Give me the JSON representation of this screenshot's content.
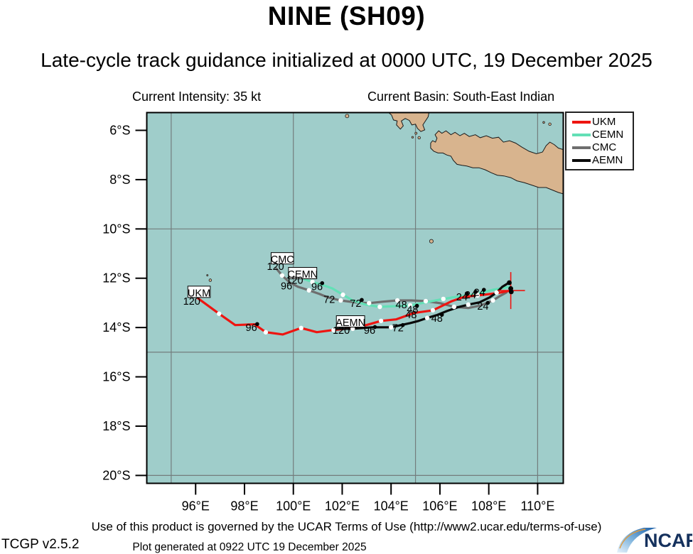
{
  "title": "NINE (SH09)",
  "subtitle": "Late-cycle track guidance initialized at 0000 UTC, 19 December 2025",
  "info": {
    "intensity": "Current Intensity: 35 kt",
    "basin": "Current Basin: South-East Indian"
  },
  "legend": [
    {
      "label": "UKM",
      "color": "#ee1511"
    },
    {
      "label": "CEMN",
      "color": "#63e0b6"
    },
    {
      "label": "CMC",
      "color": "#6e6e6e"
    },
    {
      "label": "AEMN",
      "color": "#0a0a0a"
    }
  ],
  "footer": {
    "terms": "Use of this product is governed by the UCAR Terms of Use (http://www2.ucar.edu/terms-of-use)",
    "generated": "Plot generated at 0922 UTC   19 December 2025",
    "version": "TCGP v2.5.2",
    "logo_text": "NCAR"
  },
  "chart_data": {
    "type": "line",
    "title": "NINE (SH09) late-cycle track guidance map",
    "lon_range": [
      94.0,
      111.05
    ],
    "lat_range": [
      5.28,
      20.32
    ],
    "x_ticks": [
      {
        "lon": 96,
        "label": "96°E"
      },
      {
        "lon": 98,
        "label": "98°E"
      },
      {
        "lon": 100,
        "label": "100°E"
      },
      {
        "lon": 102,
        "label": "102°E"
      },
      {
        "lon": 104,
        "label": "104°E"
      },
      {
        "lon": 106,
        "label": "106°E"
      },
      {
        "lon": 108,
        "label": "108°E"
      },
      {
        "lon": 110,
        "label": "110°E"
      }
    ],
    "y_ticks": [
      {
        "lat": 6,
        "label": "6°S"
      },
      {
        "lat": 8,
        "label": "8°S"
      },
      {
        "lat": 10,
        "label": "10°S"
      },
      {
        "lat": 12,
        "label": "12°S"
      },
      {
        "lat": 14,
        "label": "14°S"
      },
      {
        "lat": 16,
        "label": "16°S"
      },
      {
        "lat": 18,
        "label": "18°S"
      },
      {
        "lat": 20,
        "label": "20°S"
      }
    ],
    "grid": {
      "lons": [
        95,
        100,
        105,
        110
      ],
      "lats": [
        10,
        15,
        20
      ]
    },
    "colors": {
      "sea": "#9fcdca",
      "land": "#d8b48e",
      "coast": "#1a1a1a",
      "grid": "#737d7d",
      "frame": "#000000",
      "cross": "#ee1511"
    },
    "current_position": {
      "lon": 108.9,
      "lat": 12.5
    },
    "series": [
      {
        "name": "CMC",
        "color": "#6e6e6e",
        "points": [
          [
            99.3,
            11.6
          ],
          [
            99.54,
            11.89
          ],
          [
            99.86,
            12.18
          ],
          [
            100.2,
            12.35
          ],
          [
            100.64,
            12.49
          ],
          [
            101.07,
            12.64
          ],
          [
            101.42,
            12.78
          ],
          [
            101.94,
            12.9
          ],
          [
            102.52,
            12.98
          ],
          [
            103.1,
            13.01
          ],
          [
            103.68,
            12.95
          ],
          [
            104.26,
            12.9
          ],
          [
            104.84,
            12.9
          ],
          [
            105.42,
            12.93
          ],
          [
            106.0,
            13.01
          ],
          [
            106.58,
            13.16
          ],
          [
            107.16,
            13.21
          ],
          [
            107.68,
            13.1
          ],
          [
            108.17,
            12.9
          ],
          [
            108.46,
            12.72
          ],
          [
            108.72,
            12.58
          ]
        ],
        "white_dots": [
          [
            99.54,
            11.89
          ],
          [
            100.64,
            12.49
          ],
          [
            101.94,
            12.9
          ],
          [
            103.1,
            13.01
          ],
          [
            104.26,
            12.9
          ],
          [
            105.42,
            12.93
          ],
          [
            106.58,
            13.16
          ],
          [
            108.17,
            12.9
          ]
        ]
      },
      {
        "name": "CEMN",
        "color": "#63e0b6",
        "points": [
          [
            100.43,
            12.03
          ],
          [
            100.78,
            12.15
          ],
          [
            101.16,
            12.26
          ],
          [
            101.59,
            12.41
          ],
          [
            102.03,
            12.67
          ],
          [
            102.43,
            12.9
          ],
          [
            102.96,
            13.07
          ],
          [
            103.54,
            13.16
          ],
          [
            104.2,
            13.13
          ],
          [
            104.78,
            13.1
          ],
          [
            105.42,
            12.98
          ],
          [
            106.14,
            12.84
          ],
          [
            106.87,
            12.72
          ],
          [
            107.51,
            12.64
          ],
          [
            108.17,
            12.47
          ],
          [
            108.84,
            12.35
          ]
        ],
        "white_dots": [
          [
            100.78,
            12.15
          ],
          [
            102.03,
            12.67
          ],
          [
            103.54,
            13.16
          ],
          [
            104.78,
            13.1
          ],
          [
            106.14,
            12.84
          ],
          [
            107.51,
            12.64
          ]
        ]
      },
      {
        "name": "UKM",
        "color": "#ee1511",
        "points": [
          [
            96.09,
            12.81
          ],
          [
            96.96,
            13.44
          ],
          [
            97.62,
            13.9
          ],
          [
            98.41,
            13.87
          ],
          [
            98.87,
            14.19
          ],
          [
            99.57,
            14.28
          ],
          [
            100.32,
            14.02
          ],
          [
            100.96,
            14.19
          ],
          [
            101.65,
            14.1
          ],
          [
            102.67,
            13.99
          ],
          [
            103.59,
            13.73
          ],
          [
            104.2,
            13.67
          ],
          [
            104.93,
            13.41
          ],
          [
            105.71,
            13.3
          ],
          [
            106.49,
            12.93
          ],
          [
            107.01,
            12.75
          ],
          [
            107.54,
            12.7
          ],
          [
            108.32,
            12.61
          ],
          [
            108.9,
            12.5
          ]
        ],
        "white_dots": [
          [
            96.96,
            13.44
          ],
          [
            98.87,
            14.19
          ],
          [
            100.32,
            14.02
          ],
          [
            101.65,
            14.1
          ],
          [
            103.59,
            13.73
          ],
          [
            105.71,
            13.3
          ],
          [
            107.54,
            12.7
          ]
        ]
      },
      {
        "name": "AEMN",
        "color": "#0a0a0a",
        "points": [
          [
            101.65,
            14.05
          ],
          [
            102.09,
            14.05
          ],
          [
            102.43,
            14.05
          ],
          [
            102.84,
            14.02
          ],
          [
            103.25,
            13.99
          ],
          [
            103.62,
            13.99
          ],
          [
            104.0,
            13.99
          ],
          [
            104.41,
            13.9
          ],
          [
            104.78,
            13.82
          ],
          [
            105.13,
            13.73
          ],
          [
            105.48,
            13.61
          ],
          [
            105.86,
            13.5
          ],
          [
            106.29,
            13.33
          ],
          [
            106.72,
            13.18
          ],
          [
            107.16,
            13.07
          ],
          [
            107.62,
            12.98
          ],
          [
            108.03,
            12.78
          ],
          [
            108.32,
            12.58
          ],
          [
            108.55,
            12.35
          ],
          [
            108.78,
            12.21
          ]
        ],
        "white_dots": [
          [
            102.43,
            14.05
          ],
          [
            104.0,
            13.99
          ],
          [
            105.48,
            13.61
          ],
          [
            107.16,
            13.07
          ],
          [
            108.32,
            12.58
          ]
        ]
      }
    ],
    "black_dots": [
      [
        108.84,
        12.18
      ],
      [
        108.9,
        12.42
      ],
      [
        108.92,
        12.55
      ]
    ],
    "labels": [
      {
        "text": "CMC",
        "lon": 99.55,
        "lat": 11.22,
        "boxed": true
      },
      {
        "text": "120",
        "lon": 99.27,
        "lat": 11.5
      },
      {
        "text": "CEMN",
        "lon": 100.38,
        "lat": 11.82,
        "boxed": true
      },
      {
        "text": "120",
        "lon": 100.05,
        "lat": 12.06
      },
      {
        "text": "96",
        "lon": 99.72,
        "lat": 12.3
      },
      {
        "text": "96",
        "lon": 100.97,
        "lat": 12.32,
        "dot": [
          101.18,
          12.2
        ]
      },
      {
        "text": "72",
        "lon": 101.47,
        "lat": 12.85
      },
      {
        "text": "72",
        "lon": 102.55,
        "lat": 13.0,
        "dot": [
          102.8,
          12.88
        ]
      },
      {
        "text": "UKM",
        "lon": 96.14,
        "lat": 12.58,
        "boxed": true
      },
      {
        "text": "120",
        "lon": 95.84,
        "lat": 12.92
      },
      {
        "text": "96",
        "lon": 98.28,
        "lat": 13.98,
        "dot": [
          98.52,
          13.86
        ]
      },
      {
        "text": "AEMN",
        "lon": 102.34,
        "lat": 13.78,
        "boxed": true
      },
      {
        "text": "120",
        "lon": 101.96,
        "lat": 14.1
      },
      {
        "text": "96",
        "lon": 103.12,
        "lat": 14.1,
        "dot": [
          103.34,
          13.98
        ]
      },
      {
        "text": "72",
        "lon": 104.28,
        "lat": 14.0,
        "dot": [
          104.48,
          13.9
        ]
      },
      {
        "text": "48",
        "lon": 105.88,
        "lat": 13.6,
        "dot": [
          106.08,
          13.48
        ]
      },
      {
        "text": "48",
        "lon": 104.42,
        "lat": 13.06
      },
      {
        "text": "48",
        "lon": 104.88,
        "lat": 13.24,
        "dot": [
          105.06,
          13.12
        ]
      },
      {
        "text": "48",
        "lon": 104.82,
        "lat": 13.46
      },
      {
        "text": "24",
        "lon": 106.9,
        "lat": 12.74,
        "dot": [
          107.1,
          12.62
        ]
      },
      {
        "text": "24",
        "lon": 107.25,
        "lat": 12.66,
        "dot": [
          107.46,
          12.55
        ]
      },
      {
        "text": "24",
        "lon": 107.62,
        "lat": 12.56,
        "dot": [
          107.8,
          12.47
        ]
      },
      {
        "text": "24",
        "lon": 107.76,
        "lat": 13.12,
        "dot": [
          107.96,
          13.0
        ]
      }
    ],
    "land": [
      {
        "name": "sumatra-tip",
        "points": [
          [
            103.9,
            5.28
          ],
          [
            104.02,
            5.38
          ],
          [
            104.1,
            5.58
          ],
          [
            104.25,
            5.62
          ],
          [
            104.22,
            5.78
          ],
          [
            104.38,
            5.95
          ],
          [
            104.5,
            5.82
          ],
          [
            104.42,
            5.62
          ],
          [
            104.58,
            5.52
          ],
          [
            104.75,
            5.6
          ],
          [
            104.85,
            5.78
          ],
          [
            105.0,
            5.75
          ],
          [
            105.08,
            5.92
          ],
          [
            105.22,
            6.05
          ],
          [
            105.38,
            5.98
          ],
          [
            105.3,
            5.78
          ],
          [
            105.42,
            5.6
          ],
          [
            105.52,
            5.45
          ],
          [
            105.55,
            5.28
          ]
        ]
      },
      {
        "name": "java",
        "points": [
          [
            105.62,
            6.52
          ],
          [
            105.7,
            6.42
          ],
          [
            105.82,
            6.48
          ],
          [
            105.88,
            6.32
          ],
          [
            105.8,
            6.18
          ],
          [
            105.95,
            6.02
          ],
          [
            106.08,
            6.12
          ],
          [
            106.25,
            6.02
          ],
          [
            106.45,
            6.18
          ],
          [
            106.62,
            6.08
          ],
          [
            106.82,
            6.22
          ],
          [
            107.0,
            6.12
          ],
          [
            107.2,
            6.25
          ],
          [
            107.45,
            6.18
          ],
          [
            107.65,
            6.3
          ],
          [
            107.9,
            6.22
          ],
          [
            108.15,
            6.32
          ],
          [
            108.4,
            6.28
          ],
          [
            108.6,
            6.48
          ],
          [
            108.85,
            6.42
          ],
          [
            109.1,
            6.52
          ],
          [
            109.35,
            6.68
          ],
          [
            109.65,
            6.85
          ],
          [
            109.95,
            6.95
          ],
          [
            110.2,
            6.88
          ],
          [
            110.35,
            6.62
          ],
          [
            110.5,
            6.48
          ],
          [
            110.68,
            6.58
          ],
          [
            110.85,
            6.72
          ],
          [
            111.05,
            6.78
          ],
          [
            111.05,
            8.58
          ],
          [
            110.85,
            8.52
          ],
          [
            110.6,
            8.42
          ],
          [
            110.35,
            8.32
          ],
          [
            110.05,
            8.32
          ],
          [
            109.75,
            8.22
          ],
          [
            109.45,
            8.12
          ],
          [
            109.15,
            8.05
          ],
          [
            108.9,
            7.92
          ],
          [
            108.62,
            7.85
          ],
          [
            108.35,
            7.82
          ],
          [
            108.1,
            7.72
          ],
          [
            107.85,
            7.6
          ],
          [
            107.6,
            7.52
          ],
          [
            107.35,
            7.52
          ],
          [
            107.1,
            7.45
          ],
          [
            106.9,
            7.42
          ],
          [
            106.7,
            7.38
          ],
          [
            106.55,
            7.22
          ],
          [
            106.45,
            7.05
          ],
          [
            106.28,
            7.0
          ],
          [
            106.12,
            6.92
          ],
          [
            105.92,
            6.92
          ],
          [
            105.75,
            6.85
          ],
          [
            105.62,
            6.72
          ]
        ]
      }
    ],
    "islands": [
      {
        "name": "enggano",
        "lon": 102.2,
        "lat": 5.42,
        "r": 2.5
      },
      {
        "name": "krakatoa-1",
        "lon": 104.88,
        "lat": 6.28,
        "r": 1.2
      },
      {
        "name": "krakatoa-2",
        "lon": 105.02,
        "lat": 6.12,
        "r": 1.5
      },
      {
        "name": "krakatoa-3",
        "lon": 105.15,
        "lat": 6.3,
        "r": 1.8
      },
      {
        "name": "java-sea-1",
        "lon": 110.25,
        "lat": 5.68,
        "r": 1.3
      },
      {
        "name": "java-sea-2",
        "lon": 110.5,
        "lat": 5.75,
        "r": 1.8
      },
      {
        "name": "christmas-isl",
        "lon": 105.65,
        "lat": 10.5,
        "r": 2.6
      },
      {
        "name": "cocos-isl-1",
        "lon": 96.48,
        "lat": 11.88,
        "r": 1.0
      },
      {
        "name": "cocos-isl-2",
        "lon": 96.6,
        "lat": 12.08,
        "r": 1.8
      }
    ]
  }
}
